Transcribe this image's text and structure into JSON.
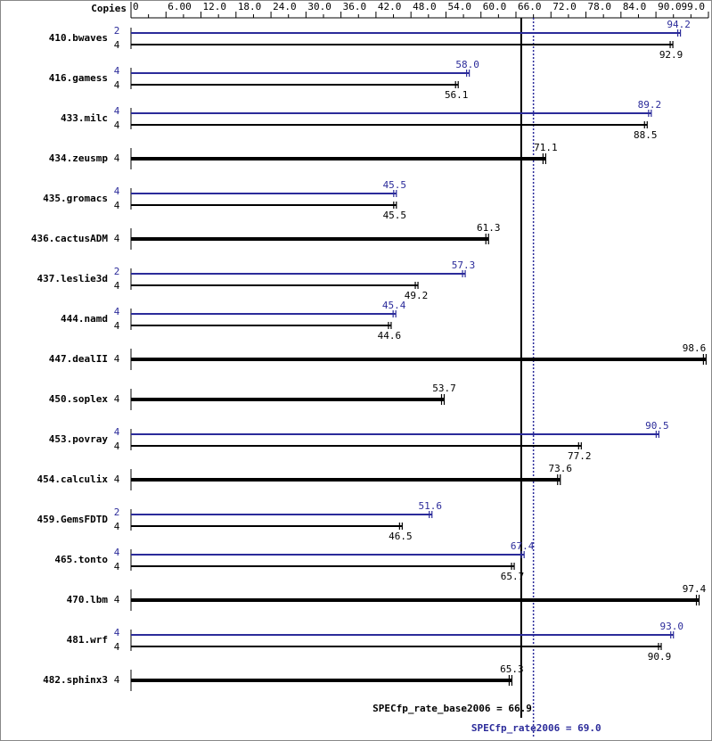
{
  "chart_data": {
    "type": "spec-bar",
    "axis_label": "Copies",
    "xlim": [
      0,
      99
    ],
    "xticks": [
      0,
      {
        "value": 6,
        "label": "6.00"
      },
      {
        "value": 12,
        "label": "12.0"
      },
      {
        "value": 18,
        "label": "18.0"
      },
      {
        "value": 24,
        "label": "24.0"
      },
      {
        "value": 30,
        "label": "30.0"
      },
      {
        "value": 36,
        "label": "36.0"
      },
      {
        "value": 42,
        "label": "42.0"
      },
      {
        "value": 48,
        "label": "48.0"
      },
      {
        "value": 54,
        "label": "54.0"
      },
      {
        "value": 60,
        "label": "60.0"
      },
      {
        "value": 66,
        "label": "66.0"
      },
      {
        "value": 72,
        "label": "72.0"
      },
      {
        "value": 78,
        "label": "78.0"
      },
      {
        "value": 84,
        "label": "84.0"
      },
      {
        "value": 90,
        "label": "90.0"
      },
      {
        "value": 99,
        "label": "99.0"
      }
    ],
    "minor_xticks": [
      3,
      9,
      15,
      21,
      27,
      33,
      39,
      45,
      51,
      57,
      63,
      69,
      75,
      81,
      87,
      93,
      96
    ],
    "categories": [
      "410.bwaves",
      "416.gamess",
      "433.milc",
      "434.zeusmp",
      "435.gromacs",
      "436.cactusADM",
      "437.leslie3d",
      "444.namd",
      "447.dealII",
      "450.soplex",
      "453.povray",
      "454.calculix",
      "459.GemsFDTD",
      "465.tonto",
      "470.lbm",
      "481.wrf",
      "482.sphinx3"
    ],
    "peak": {
      "color": "#2b2b9a",
      "copies": [
        2,
        4,
        4,
        null,
        4,
        null,
        2,
        4,
        null,
        null,
        4,
        null,
        2,
        4,
        null,
        4,
        null
      ],
      "values": [
        94.2,
        58.0,
        89.2,
        null,
        45.5,
        null,
        57.3,
        45.4,
        null,
        null,
        90.5,
        null,
        51.6,
        67.4,
        null,
        93.0,
        null
      ],
      "value_labels": [
        "94.2",
        "58.0",
        "89.2",
        null,
        "45.5",
        null,
        "57.3",
        "45.4",
        null,
        null,
        "90.5",
        null,
        "51.6",
        "67.4",
        null,
        "93.0",
        null
      ]
    },
    "base": {
      "color": "#000000",
      "copies": [
        4,
        4,
        4,
        4,
        4,
        4,
        4,
        4,
        4,
        4,
        4,
        4,
        4,
        4,
        4,
        4,
        4
      ],
      "values": [
        92.9,
        56.1,
        88.5,
        71.1,
        45.5,
        61.3,
        49.2,
        44.6,
        98.6,
        53.7,
        77.2,
        73.6,
        46.5,
        65.7,
        97.4,
        90.9,
        65.3
      ],
      "value_labels": [
        "92.9",
        "56.1",
        "88.5",
        "71.1",
        "45.5",
        "61.3",
        "49.2",
        "44.6",
        "98.6",
        "53.7",
        "77.2",
        "73.6",
        "46.5",
        "65.7",
        "97.4",
        "90.9",
        "65.3"
      ]
    },
    "reference_lines": [
      {
        "label": "SPECfp_rate_base2006 = 66.9",
        "value": 66.9,
        "color": "#000000",
        "style": "solid"
      },
      {
        "label": "SPECfp_rate2006 = 69.0",
        "value": 69.0,
        "color": "#2b2b9a",
        "style": "dotted"
      }
    ]
  }
}
